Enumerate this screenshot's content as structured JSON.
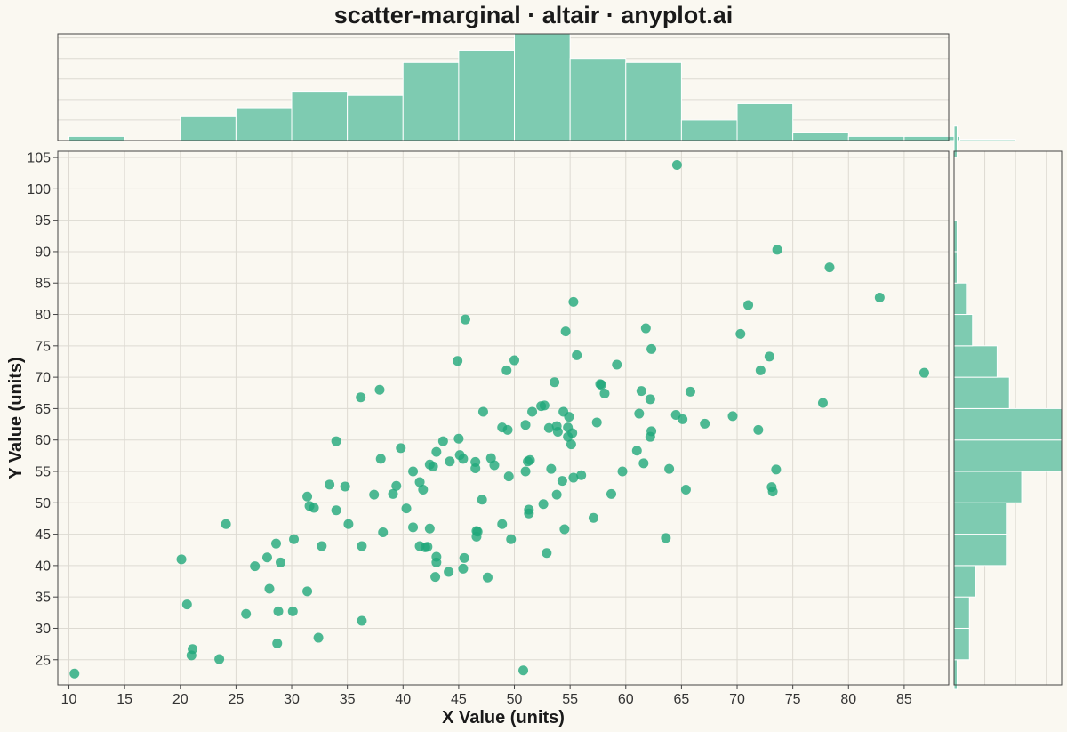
{
  "chart_data": {
    "type": "scatter",
    "title": "scatter-marginal · altair · anyplot.ai",
    "xlabel": "X Value (units)",
    "ylabel": "Y Value (units)",
    "xlim": [
      9,
      89
    ],
    "ylim": [
      21,
      106
    ],
    "x_ticks": [
      10,
      15,
      20,
      25,
      30,
      35,
      40,
      45,
      50,
      55,
      60,
      65,
      70,
      75,
      80,
      85
    ],
    "y_ticks": [
      25,
      30,
      35,
      40,
      45,
      50,
      55,
      60,
      65,
      70,
      75,
      80,
      85,
      90,
      95,
      100,
      105
    ],
    "grid": true,
    "colors": {
      "point": "#21A77A",
      "bar": "#7ECBB1",
      "background": "#FAF8F1",
      "grid": "#DDDAD2",
      "frame": "#444444"
    },
    "points": [
      [
        10.5,
        22.8
      ],
      [
        20.1,
        41.0
      ],
      [
        20.6,
        33.8
      ],
      [
        21.1,
        26.7
      ],
      [
        21.0,
        25.7
      ],
      [
        23.5,
        25.1
      ],
      [
        24.1,
        46.6
      ],
      [
        25.9,
        32.3
      ],
      [
        26.7,
        39.9
      ],
      [
        27.8,
        41.3
      ],
      [
        28.0,
        36.3
      ],
      [
        28.6,
        43.5
      ],
      [
        28.7,
        27.6
      ],
      [
        28.8,
        32.7
      ],
      [
        29.0,
        40.5
      ],
      [
        30.1,
        32.7
      ],
      [
        30.2,
        44.2
      ],
      [
        31.4,
        51.0
      ],
      [
        31.6,
        49.5
      ],
      [
        31.4,
        35.9
      ],
      [
        32.0,
        49.2
      ],
      [
        32.4,
        28.5
      ],
      [
        32.7,
        43.1
      ],
      [
        33.4,
        52.9
      ],
      [
        34.0,
        59.8
      ],
      [
        34.0,
        48.8
      ],
      [
        34.8,
        52.6
      ],
      [
        35.1,
        46.6
      ],
      [
        36.2,
        66.8
      ],
      [
        36.3,
        31.2
      ],
      [
        36.3,
        43.1
      ],
      [
        37.4,
        51.3
      ],
      [
        37.9,
        68.0
      ],
      [
        38.0,
        57.0
      ],
      [
        38.2,
        45.3
      ],
      [
        39.1,
        51.4
      ],
      [
        39.4,
        52.7
      ],
      [
        39.8,
        58.7
      ],
      [
        40.3,
        49.1
      ],
      [
        40.9,
        46.1
      ],
      [
        40.9,
        55.0
      ],
      [
        41.5,
        53.3
      ],
      [
        41.5,
        43.1
      ],
      [
        41.8,
        52.1
      ],
      [
        42.0,
        42.9
      ],
      [
        42.2,
        43.0
      ],
      [
        42.4,
        45.9
      ],
      [
        42.4,
        56.1
      ],
      [
        42.7,
        55.8
      ],
      [
        42.9,
        38.2
      ],
      [
        43.0,
        40.5
      ],
      [
        43.0,
        41.4
      ],
      [
        43.0,
        58.1
      ],
      [
        43.6,
        59.8
      ],
      [
        44.1,
        39.0
      ],
      [
        44.2,
        56.6
      ],
      [
        44.9,
        72.6
      ],
      [
        45.0,
        60.2
      ],
      [
        45.1,
        57.6
      ],
      [
        45.4,
        57.0
      ],
      [
        45.4,
        39.5
      ],
      [
        45.5,
        41.2
      ],
      [
        45.6,
        79.2
      ],
      [
        46.5,
        56.5
      ],
      [
        46.5,
        55.5
      ],
      [
        46.6,
        45.5
      ],
      [
        46.6,
        44.6
      ],
      [
        46.7,
        45.4
      ],
      [
        47.1,
        50.5
      ],
      [
        47.2,
        64.5
      ],
      [
        47.6,
        38.1
      ],
      [
        47.9,
        57.1
      ],
      [
        48.2,
        56.0
      ],
      [
        48.9,
        62.0
      ],
      [
        48.9,
        46.6
      ],
      [
        49.3,
        71.1
      ],
      [
        49.4,
        61.6
      ],
      [
        49.5,
        54.2
      ],
      [
        49.7,
        44.2
      ],
      [
        50.0,
        72.7
      ],
      [
        50.8,
        23.3
      ],
      [
        51.0,
        62.4
      ],
      [
        51.0,
        55.0
      ],
      [
        51.2,
        56.6
      ],
      [
        51.3,
        48.9
      ],
      [
        51.3,
        48.3
      ],
      [
        51.4,
        56.8
      ],
      [
        51.6,
        64.5
      ],
      [
        52.4,
        65.4
      ],
      [
        52.6,
        49.8
      ],
      [
        52.7,
        65.5
      ],
      [
        52.9,
        42.0
      ],
      [
        53.1,
        61.9
      ],
      [
        53.3,
        55.4
      ],
      [
        53.6,
        69.2
      ],
      [
        53.8,
        51.3
      ],
      [
        53.8,
        62.2
      ],
      [
        53.9,
        61.3
      ],
      [
        54.3,
        53.5
      ],
      [
        54.4,
        64.5
      ],
      [
        54.5,
        45.8
      ],
      [
        54.6,
        77.3
      ],
      [
        54.8,
        62.0
      ],
      [
        54.8,
        60.5
      ],
      [
        54.9,
        63.7
      ],
      [
        55.1,
        59.3
      ],
      [
        55.2,
        61.1
      ],
      [
        55.3,
        54.0
      ],
      [
        55.3,
        82.0
      ],
      [
        55.6,
        73.5
      ],
      [
        56.0,
        54.4
      ],
      [
        57.1,
        47.6
      ],
      [
        57.4,
        62.8
      ],
      [
        57.7,
        68.9
      ],
      [
        57.8,
        68.8
      ],
      [
        58.1,
        67.4
      ],
      [
        58.7,
        51.4
      ],
      [
        59.2,
        72.0
      ],
      [
        59.7,
        55.0
      ],
      [
        61.0,
        58.3
      ],
      [
        61.2,
        64.2
      ],
      [
        61.4,
        67.8
      ],
      [
        61.6,
        56.3
      ],
      [
        61.8,
        77.8
      ],
      [
        62.2,
        66.5
      ],
      [
        62.2,
        60.5
      ],
      [
        62.3,
        61.4
      ],
      [
        62.3,
        74.5
      ],
      [
        63.6,
        44.4
      ],
      [
        63.9,
        55.4
      ],
      [
        64.5,
        64.0
      ],
      [
        64.6,
        103.8
      ],
      [
        65.1,
        63.3
      ],
      [
        65.4,
        52.1
      ],
      [
        65.8,
        67.7
      ],
      [
        67.1,
        62.6
      ],
      [
        69.6,
        63.8
      ],
      [
        70.3,
        76.9
      ],
      [
        71.0,
        81.5
      ],
      [
        71.9,
        61.6
      ],
      [
        72.1,
        71.1
      ],
      [
        72.9,
        73.3
      ],
      [
        73.1,
        52.5
      ],
      [
        73.2,
        51.8
      ],
      [
        73.5,
        55.3
      ],
      [
        73.6,
        90.3
      ],
      [
        77.7,
        65.9
      ],
      [
        78.3,
        87.5
      ],
      [
        82.8,
        82.7
      ],
      [
        86.8,
        70.7
      ]
    ],
    "x_histogram": {
      "bin_width": 5,
      "bin_start": 10,
      "counts": [
        1,
        0,
        6,
        8,
        12,
        11,
        19,
        22,
        26,
        20,
        19,
        5,
        9,
        2,
        1,
        1,
        0.3
      ]
    },
    "y_histogram": {
      "bin_width": 5,
      "bin_start": 20,
      "counts": [
        1,
        5,
        5,
        7,
        17,
        17,
        22,
        35,
        35,
        18,
        14,
        6,
        4,
        1,
        1,
        0,
        0,
        1
      ]
    }
  }
}
